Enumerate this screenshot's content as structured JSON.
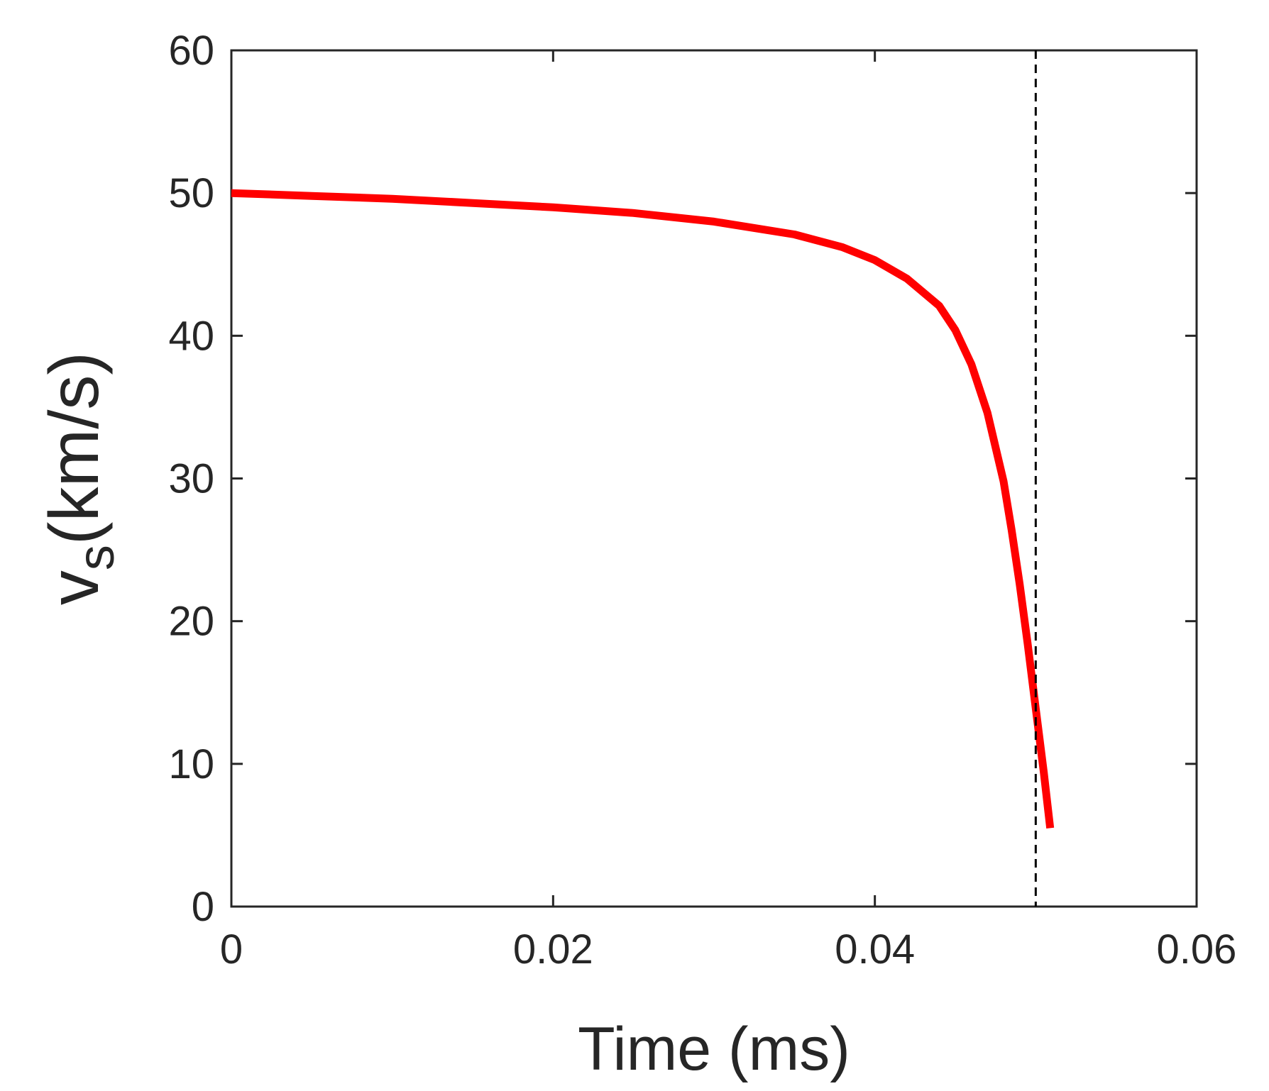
{
  "chart_data": {
    "type": "line",
    "title": "",
    "xlabel": "Time (ms)",
    "ylabel": {
      "main": "v",
      "subscript": "s",
      "unit": "(km/s)"
    },
    "xlim": [
      0,
      0.06
    ],
    "ylim": [
      0,
      60
    ],
    "xticks": [
      0,
      0.02,
      0.04,
      0.06
    ],
    "xtick_labels": [
      "0",
      "0.02",
      "0.04",
      "0.06"
    ],
    "yticks": [
      0,
      10,
      20,
      30,
      40,
      50,
      60
    ],
    "ytick_labels": [
      "0",
      "10",
      "20",
      "30",
      "40",
      "50",
      "60"
    ],
    "grid": false,
    "box": true,
    "series": [
      {
        "color": "#ff0000",
        "line_style": "solid",
        "x": [
          0,
          0.005,
          0.01,
          0.015,
          0.02,
          0.025,
          0.03,
          0.035,
          0.038,
          0.04,
          0.042,
          0.044,
          0.045,
          0.046,
          0.047,
          0.048,
          0.0485,
          0.049,
          0.0495,
          0.05,
          0.0505,
          0.0509
        ],
        "y": [
          50.0,
          49.8,
          49.6,
          49.3,
          49.0,
          48.6,
          48.0,
          47.1,
          46.2,
          45.3,
          44.0,
          42.1,
          40.4,
          38.0,
          34.6,
          29.8,
          26.4,
          22.6,
          18.4,
          13.9,
          9.4,
          5.5
        ]
      }
    ],
    "reference_lines": [
      {
        "orientation": "vertical",
        "x": 0.05,
        "color": "#000000",
        "line_style": "dashed"
      }
    ]
  }
}
